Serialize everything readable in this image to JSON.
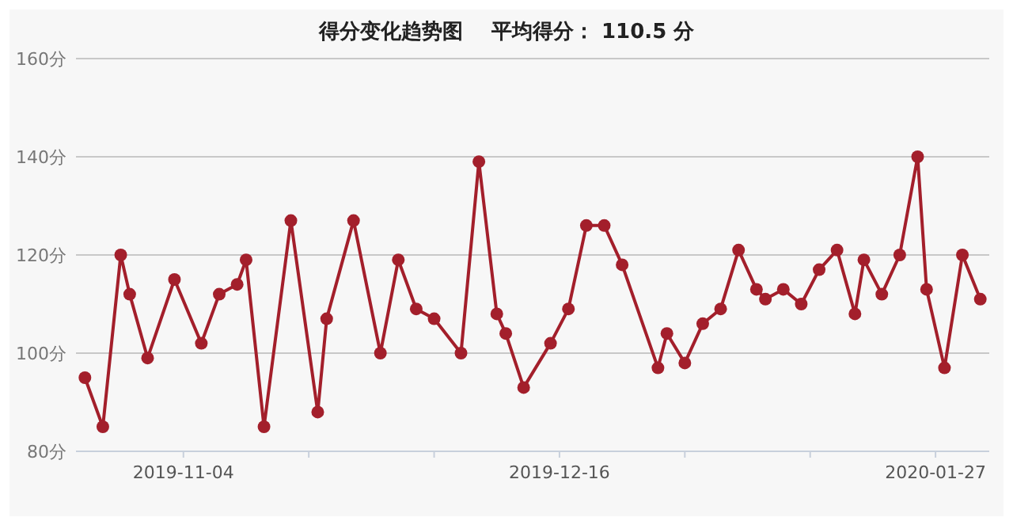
{
  "chart_data": {
    "type": "line",
    "title": "得分变化趋势图    平均得分： 110.5 分",
    "x": [
      "2019-10-24",
      "2019-10-26",
      "2019-10-28",
      "2019-10-29",
      "2019-10-31",
      "2019-11-03",
      "2019-11-06",
      "2019-11-08",
      "2019-11-10",
      "2019-11-11",
      "2019-11-13",
      "2019-11-16",
      "2019-11-19",
      "2019-11-20",
      "2019-11-23",
      "2019-11-26",
      "2019-11-28",
      "2019-11-30",
      "2019-12-02",
      "2019-12-05",
      "2019-12-07",
      "2019-12-09",
      "2019-12-10",
      "2019-12-12",
      "2019-12-15",
      "2019-12-17",
      "2019-12-19",
      "2019-12-21",
      "2019-12-23",
      "2019-12-27",
      "2019-12-28",
      "2019-12-30",
      "2020-01-01",
      "2020-01-03",
      "2020-01-05",
      "2020-01-07",
      "2020-01-08",
      "2020-01-10",
      "2020-01-12",
      "2020-01-14",
      "2020-01-16",
      "2020-01-18",
      "2020-01-19",
      "2020-01-21",
      "2020-01-23",
      "2020-01-25",
      "2020-01-26",
      "2020-01-28",
      "2020-01-30",
      "2020-02-01"
    ],
    "series": [
      {
        "color": "#a31f2b",
        "values": [
          95,
          85,
          120,
          112,
          99,
          115,
          102,
          112,
          114,
          119,
          85,
          127,
          88,
          107,
          127,
          100,
          119,
          109,
          107,
          100,
          139,
          108,
          104,
          93,
          102,
          109,
          126,
          126,
          118,
          97,
          104,
          98,
          106,
          109,
          121,
          113,
          111,
          113,
          110,
          117,
          121,
          108,
          119,
          112,
          120,
          140,
          113,
          97,
          120,
          111
        ]
      }
    ],
    "xlim": [
      "2019-10-23",
      "2020-02-02"
    ],
    "xticks": [
      {
        "value": "2019-11-04",
        "label": "2019-11-04"
      },
      {
        "value": "2019-11-18",
        "label": null
      },
      {
        "value": "2019-12-02",
        "label": null
      },
      {
        "value": "2019-12-16",
        "label": "2019-12-16"
      },
      {
        "value": "2019-12-30",
        "label": null
      },
      {
        "value": "2020-01-13",
        "label": null
      },
      {
        "value": "2020-01-27",
        "label": "2020-01-27"
      }
    ],
    "ylim": [
      80,
      160
    ],
    "yticks": [
      {
        "value": 80,
        "label": "80分"
      },
      {
        "value": 100,
        "label": "100分"
      },
      {
        "value": 120,
        "label": "120分"
      },
      {
        "value": 140,
        "label": "140分"
      },
      {
        "value": 160,
        "label": "160分"
      }
    ],
    "grid": "y",
    "marker": "circle",
    "line_style": "solid"
  }
}
